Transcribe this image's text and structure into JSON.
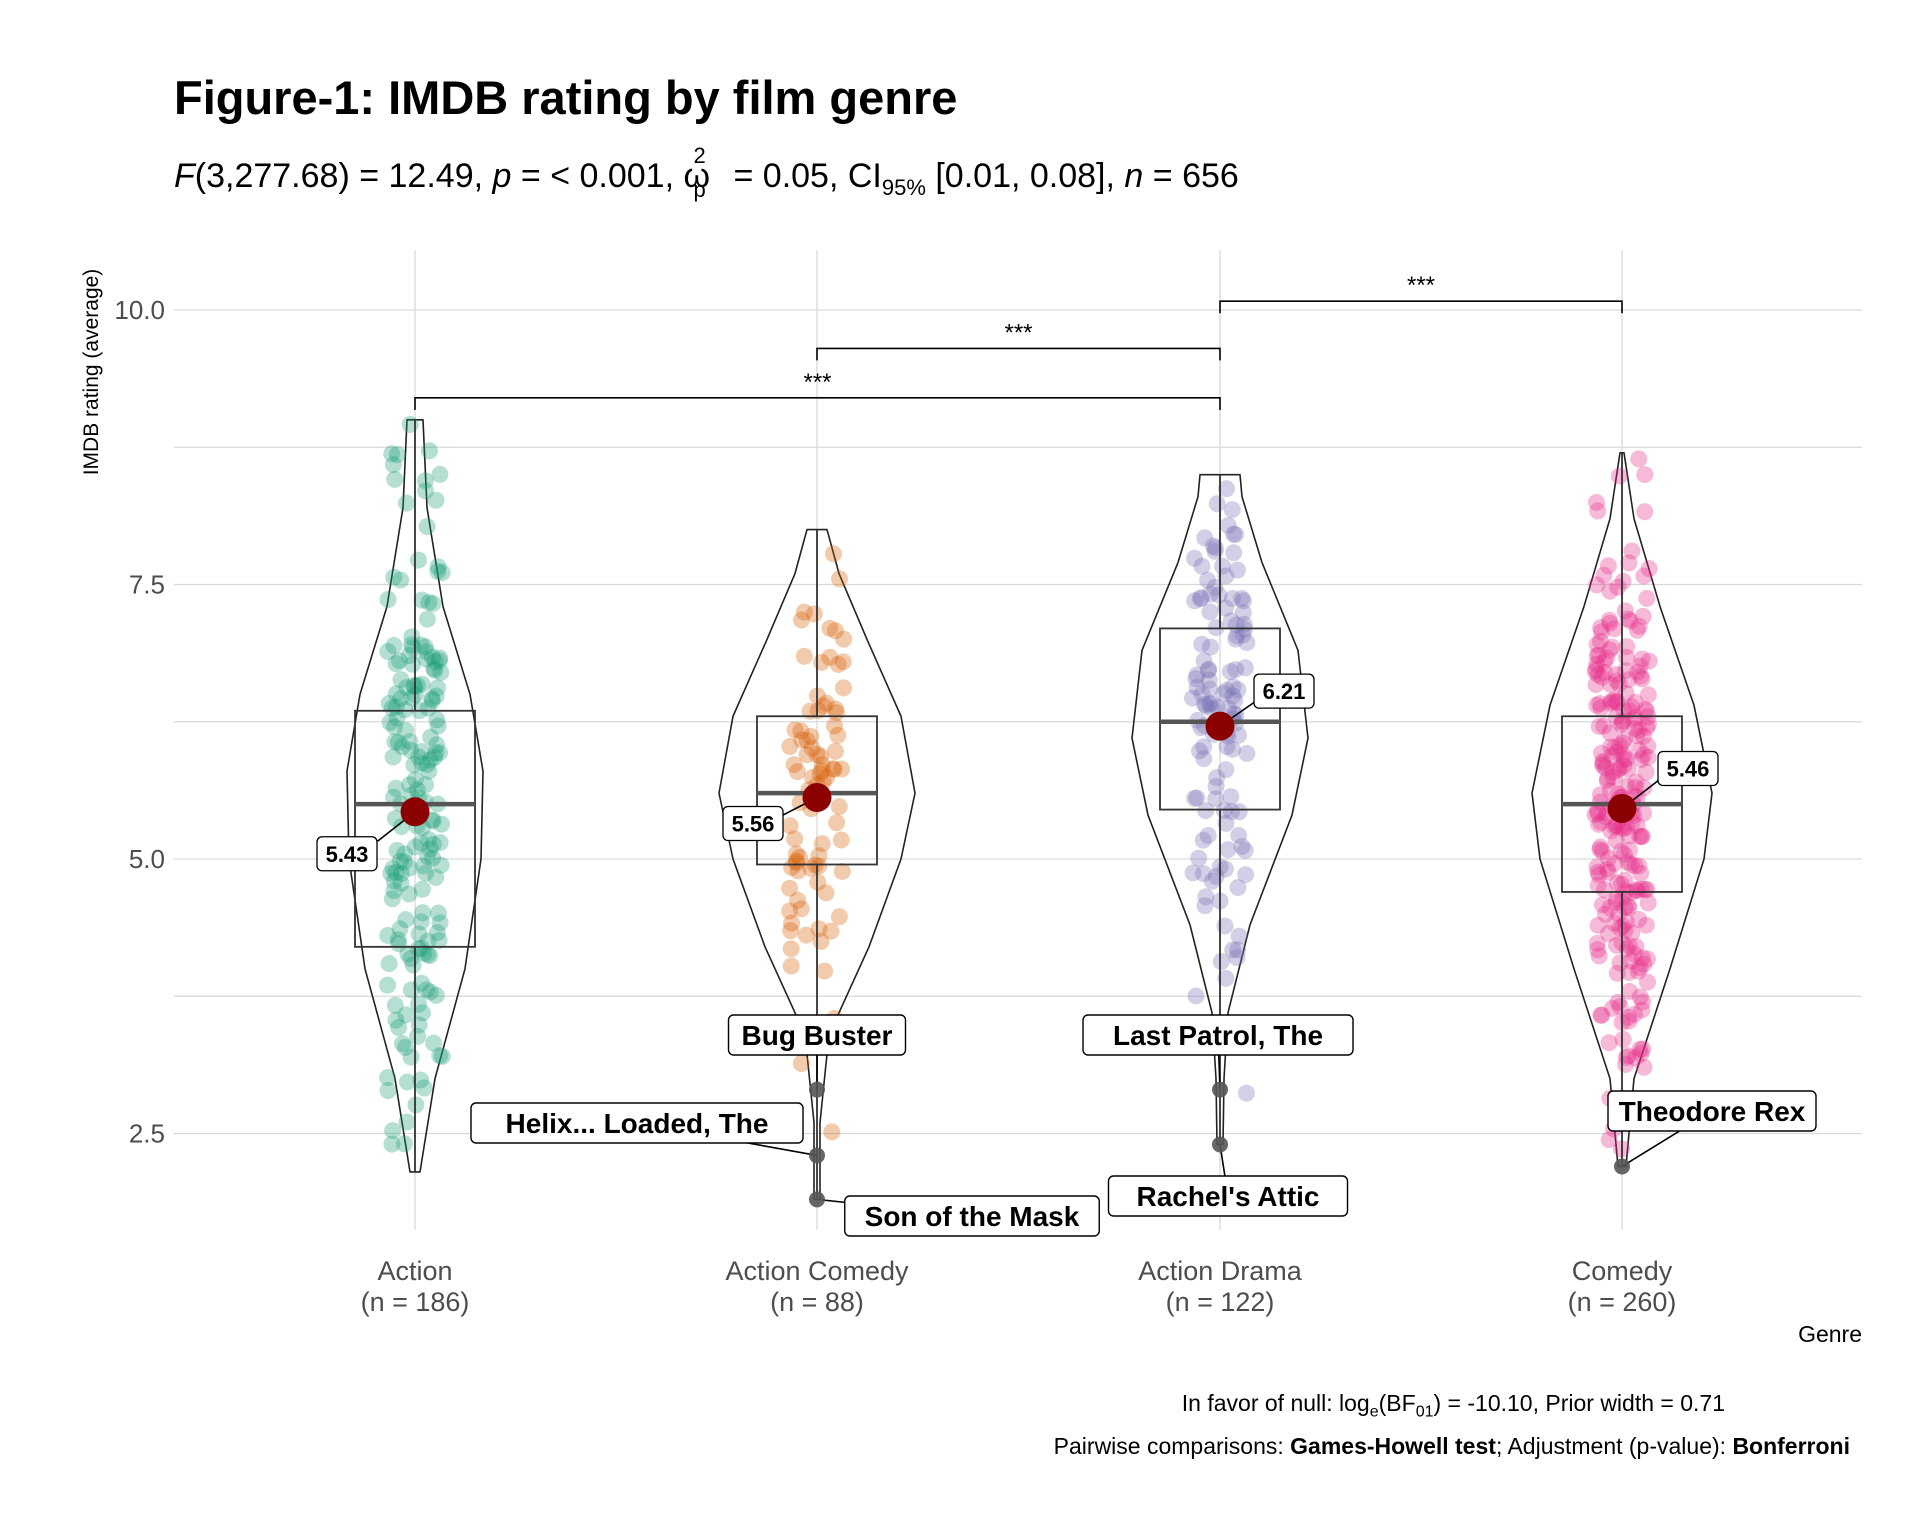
{
  "title": "Figure-1: IMDB rating by film genre",
  "subtitle": {
    "stat_label": "F",
    "df": "(3,277.68) = 12.49,",
    "p_label": "p",
    "p_value": "= < 0.001,",
    "effect_symbol": "ω",
    "effect_sup": "2",
    "effect_sub": "p",
    "effect_value": "= 0.05, CI",
    "ci_sub": "95%",
    "ci_value": "[0.01, 0.08],",
    "n_label": "n",
    "n_value": "= 656"
  },
  "caption": {
    "bayes_prefix": "In favor of null: log",
    "bayes_sub1": "e",
    "bayes_mid": "(BF",
    "bayes_sub2": "01",
    "bayes_suffix": ") = -10.10, Prior width = 0.71",
    "pairwise_prefix": "Pairwise comparisons: ",
    "pairwise_test": "Games-Howell test",
    "adjustment_prefix": "; Adjustment (p-value): ",
    "adjustment": "Bonferroni"
  },
  "colors": {
    "Action": "#1B9E77",
    "Action Comedy": "#D95F02",
    "Action Drama": "#7570B3",
    "Comedy": "#E7298A",
    "mean_point": "#8B0000",
    "grid": "#D9D9D9"
  },
  "chart_data": {
    "type": "violin-box-scatter",
    "xlabel": "Genre",
    "ylabel": "IMDB rating (average)",
    "ylim": [
      1.6,
      10.5
    ],
    "yticks": [
      "2.5",
      "5.0",
      "7.5",
      "10.0"
    ],
    "categories": [
      "Action",
      "Action Comedy",
      "Action Drama",
      "Comedy"
    ],
    "tick_labels": [
      "Action\n(n = 186)",
      "Action Comedy\n(n = 88)",
      "Action Drama\n(n = 122)",
      "Comedy\n(n = 260)"
    ],
    "n": [
      186,
      88,
      122,
      260
    ],
    "means": [
      5.43,
      5.56,
      6.21,
      5.46
    ],
    "mean_labels": [
      "5.43",
      "5.56",
      "6.21",
      "5.46"
    ],
    "boxes": [
      {
        "q1": 4.2,
        "median": 5.5,
        "q3": 6.35,
        "min": 2.15,
        "max": 9.0
      },
      {
        "q1": 4.95,
        "median": 5.6,
        "q3": 6.3,
        "min": 1.9,
        "max": 8.0
      },
      {
        "q1": 5.45,
        "median": 6.25,
        "q3": 7.1,
        "min": 2.4,
        "max": 8.5
      },
      {
        "q1": 4.7,
        "median": 5.5,
        "q3": 6.3,
        "min": 2.2,
        "max": 8.7
      }
    ],
    "outliers": [
      {
        "group": "Action Comedy",
        "y": 2.9,
        "label": "Bug Buster"
      },
      {
        "group": "Action Comedy",
        "y": 2.3,
        "label": "Helix... Loaded, The"
      },
      {
        "group": "Action Comedy",
        "y": 1.9,
        "label": "Son of the Mask"
      },
      {
        "group": "Action Drama",
        "y": 2.9,
        "label": "Last Patrol, The"
      },
      {
        "group": "Action Drama",
        "y": 2.4,
        "label": "Rachel's Attic"
      },
      {
        "group": "Comedy",
        "y": 2.2,
        "label": "Theodore Rex"
      }
    ],
    "comparisons": [
      {
        "from": "Action",
        "to": "Action Drama",
        "y": 9.2,
        "label": "***"
      },
      {
        "from": "Action Comedy",
        "to": "Action Drama",
        "y": 9.65,
        "label": "***"
      },
      {
        "from": "Action Drama",
        "to": "Comedy",
        "y": 10.08,
        "label": "***"
      }
    ],
    "grid": true
  }
}
